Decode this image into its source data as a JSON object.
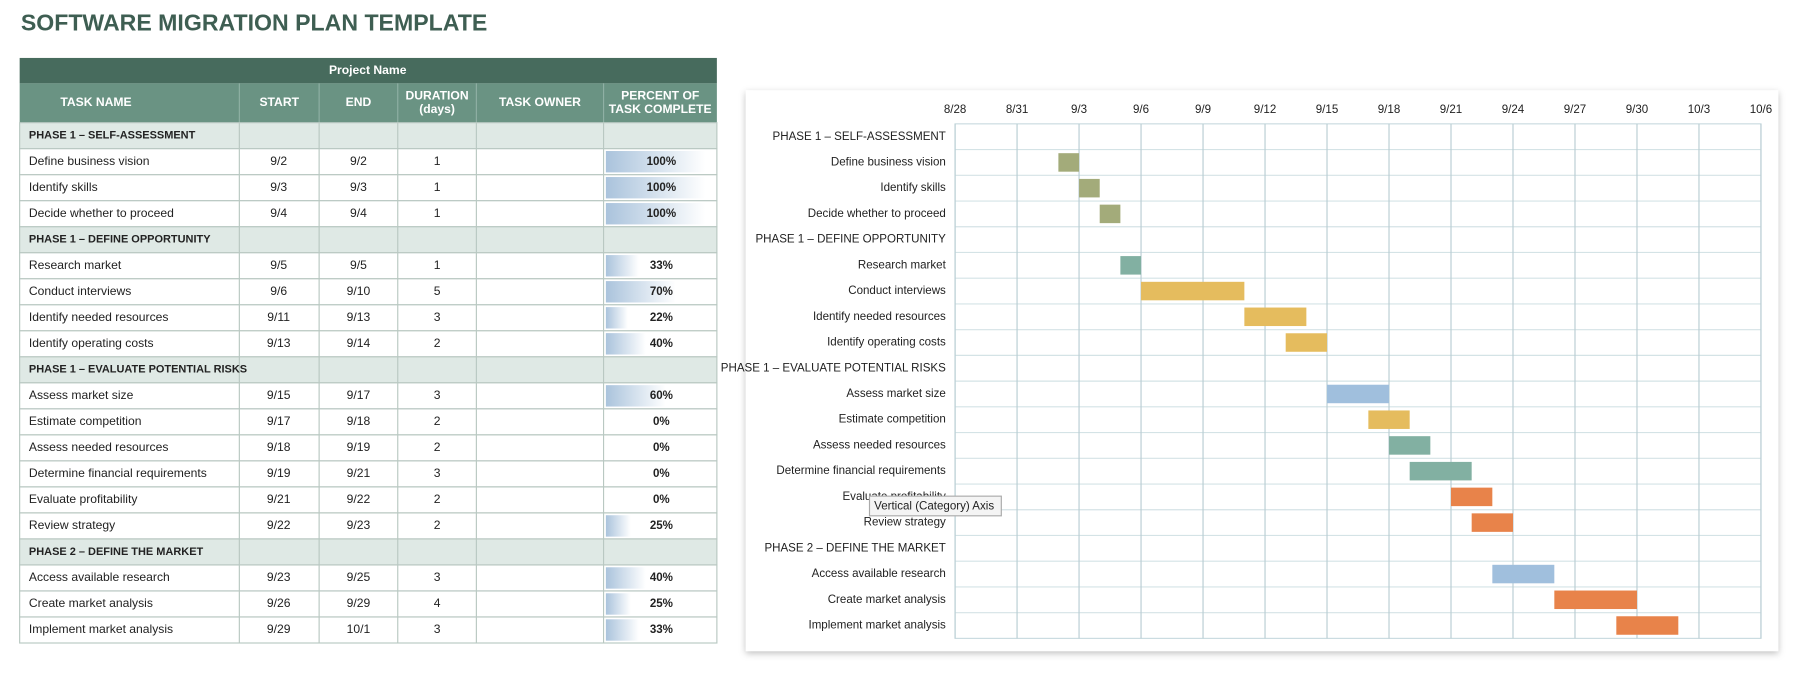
{
  "title": "SOFTWARE MIGRATION PLAN TEMPLATE",
  "table": {
    "project_name": "Project Name",
    "columns": [
      [
        "TASK NAME"
      ],
      [
        "START"
      ],
      [
        "END"
      ],
      [
        "DURATION",
        "(days)"
      ],
      [
        "TASK OWNER"
      ],
      [
        "PERCENT OF",
        "TASK COMPLETE"
      ]
    ],
    "rows": [
      {
        "phase": "PHASE 1 – SELF-ASSESSMENT"
      },
      {
        "task": "Define business vision",
        "start": "9/2",
        "end": "9/2",
        "duration": 1,
        "percent": 100,
        "percent_label": "100%"
      },
      {
        "task": "Identify skills",
        "start": "9/3",
        "end": "9/3",
        "duration": 1,
        "percent": 100,
        "percent_label": "100%"
      },
      {
        "task": "Decide whether to proceed",
        "start": "9/4",
        "end": "9/4",
        "duration": 1,
        "percent": 100,
        "percent_label": "100%"
      },
      {
        "phase": "PHASE 1 – DEFINE OPPORTUNITY"
      },
      {
        "task": "Research market",
        "start": "9/5",
        "end": "9/5",
        "duration": 1,
        "percent": 33,
        "percent_label": "33%"
      },
      {
        "task": "Conduct interviews",
        "start": "9/6",
        "end": "9/10",
        "duration": 5,
        "percent": 70,
        "percent_label": "70%"
      },
      {
        "task": "Identify needed resources",
        "start": "9/11",
        "end": "9/13",
        "duration": 3,
        "percent": 22,
        "percent_label": "22%"
      },
      {
        "task": "Identify operating costs",
        "start": "9/13",
        "end": "9/14",
        "duration": 2,
        "percent": 40,
        "percent_label": "40%"
      },
      {
        "phase": "PHASE 1 – EVALUATE POTENTIAL RISKS"
      },
      {
        "task": "Assess market size",
        "start": "9/15",
        "end": "9/17",
        "duration": 3,
        "percent": 60,
        "percent_label": "60%"
      },
      {
        "task": "Estimate competition",
        "start": "9/17",
        "end": "9/18",
        "duration": 2,
        "percent": 0,
        "percent_label": "0%"
      },
      {
        "task": "Assess needed resources",
        "start": "9/18",
        "end": "9/19",
        "duration": 2,
        "percent": 0,
        "percent_label": "0%"
      },
      {
        "task": "Determine financial requirements",
        "start": "9/19",
        "end": "9/21",
        "duration": 3,
        "percent": 0,
        "percent_label": "0%"
      },
      {
        "task": "Evaluate profitability",
        "start": "9/21",
        "end": "9/22",
        "duration": 2,
        "percent": 0,
        "percent_label": "0%"
      },
      {
        "task": "Review strategy",
        "start": "9/22",
        "end": "9/23",
        "duration": 2,
        "percent": 25,
        "percent_label": "25%"
      },
      {
        "phase": "PHASE 2 – DEFINE THE MARKET"
      },
      {
        "task": "Access available research",
        "start": "9/23",
        "end": "9/25",
        "duration": 3,
        "percent": 40,
        "percent_label": "40%"
      },
      {
        "task": "Create market analysis",
        "start": "9/26",
        "end": "9/29",
        "duration": 4,
        "percent": 25,
        "percent_label": "25%"
      },
      {
        "task": "Implement market analysis",
        "start": "9/29",
        "end": "10/1",
        "duration": 3,
        "percent": 33,
        "percent_label": "33%"
      }
    ]
  },
  "chart_data": {
    "type": "gantt",
    "categories": [
      "PHASE 1 – SELF-ASSESSMENT",
      "Define business vision",
      "Identify skills",
      "Decide whether to proceed",
      "PHASE 1 – DEFINE OPPORTUNITY",
      "Research market",
      "Conduct interviews",
      "Identify needed resources",
      "Identify operating costs",
      "PHASE 1 – EVALUATE POTENTIAL RISKS",
      "Assess market size",
      "Estimate competition",
      "Assess needed resources",
      "Determine financial requirements",
      "Evaluate profitability",
      "Review strategy",
      "PHASE 2 – DEFINE THE MARKET",
      "Access available research",
      "Create market analysis",
      "Implement market analysis"
    ],
    "start": [
      null,
      "9/2",
      "9/3",
      "9/4",
      null,
      "9/5",
      "9/6",
      "9/11",
      "9/13",
      null,
      "9/15",
      "9/17",
      "9/18",
      "9/19",
      "9/21",
      "9/22",
      null,
      "9/23",
      "9/26",
      "9/29"
    ],
    "duration": [
      null,
      1,
      1,
      1,
      null,
      1,
      5,
      3,
      2,
      null,
      3,
      2,
      2,
      3,
      2,
      2,
      null,
      3,
      4,
      3
    ],
    "colors": [
      null,
      "#a3ab7a",
      "#a3ab7a",
      "#a3ab7a",
      null,
      "#82b0a2",
      "#e5bc5e",
      "#e5bc5e",
      "#e5bc5e",
      null,
      "#a0bfdd",
      "#e5bc5e",
      "#82b0a2",
      "#82b0a2",
      "#e8834a",
      "#e8834a",
      null,
      "#a0bfdd",
      "#e8834a",
      "#e8834a"
    ],
    "xlim": [
      "8/28",
      "10/6"
    ],
    "xticks": [
      "8/28",
      "8/31",
      "9/3",
      "9/6",
      "9/9",
      "9/12",
      "9/15",
      "9/18",
      "9/21",
      "9/24",
      "9/27",
      "9/30",
      "10/3",
      "10/6"
    ],
    "grid": true,
    "tooltip": "Vertical (Category) Axis"
  }
}
